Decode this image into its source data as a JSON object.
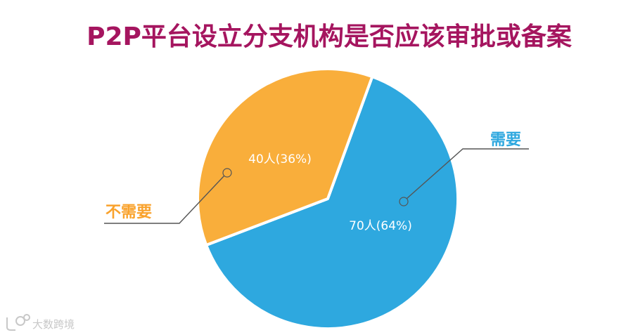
{
  "chart_data": {
    "type": "pie",
    "title": "P2P平台设立分支机构是否应该审批或备案",
    "slices": [
      {
        "category": "需要",
        "count": 70,
        "unit": "人",
        "percent": 64,
        "label": "70人(64%)",
        "color": "#2ea8df"
      },
      {
        "category": "不需要",
        "count": 40,
        "unit": "人",
        "percent": 36,
        "label": "40人(36%)",
        "color": "#f9ae3b"
      }
    ],
    "legend": "none"
  },
  "watermark": {
    "text": "大数跨境"
  }
}
